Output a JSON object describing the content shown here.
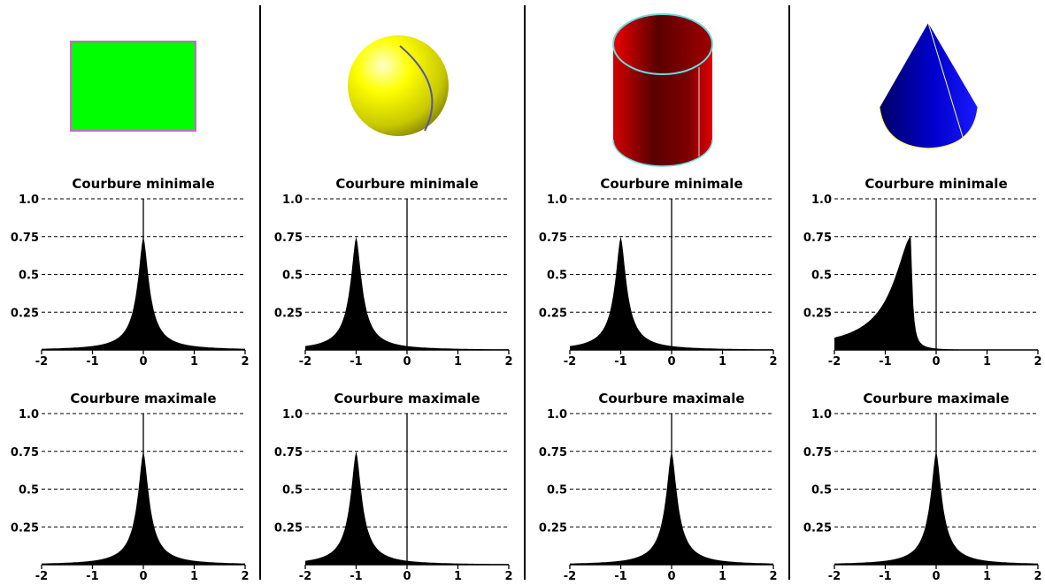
{
  "columns": [
    {
      "shape": "rectangle-icon",
      "color": "#00ff00",
      "edge": "#cc66cc"
    },
    {
      "shape": "sphere-icon",
      "color": "#ffff00",
      "edge": "#5555aa"
    },
    {
      "shape": "cylinder-icon",
      "color": "#cc0000",
      "edge": "#66dddd"
    },
    {
      "shape": "cone-icon",
      "color": "#0000dd",
      "edge": "#ffff66"
    }
  ],
  "chart_data": [
    {
      "type": "area",
      "title": "Courbure minimale",
      "peak_x": 0,
      "peak_y": 0.75,
      "width_left": 0.18,
      "width_right": 0.18,
      "xlim": [
        -2,
        2
      ],
      "ylim": [
        0,
        1.0
      ],
      "xticks": [
        "-2",
        "-1",
        "0",
        "1",
        "2"
      ],
      "yticks": [
        "1.0",
        "0.75",
        "0.5",
        "0.25"
      ],
      "grid": "horizontal dashed"
    },
    {
      "type": "area",
      "title": "Courbure maximale",
      "peak_x": 0,
      "peak_y": 0.75,
      "width_left": 0.18,
      "width_right": 0.18,
      "xlim": [
        -2,
        2
      ],
      "ylim": [
        0,
        1.0
      ],
      "xticks": [
        "-2",
        "-1",
        "0",
        "1",
        "2"
      ],
      "yticks": [
        "1.0",
        "0.75",
        "0.5",
        "0.25"
      ],
      "grid": "horizontal dashed"
    },
    {
      "type": "area",
      "title": "Courbure minimale",
      "peak_x": -1,
      "peak_y": 0.75,
      "width_left": 0.18,
      "width_right": 0.18,
      "xlim": [
        -2,
        2
      ],
      "ylim": [
        0,
        1.0
      ],
      "xticks": [
        "-2",
        "-1",
        "0",
        "1",
        "2"
      ],
      "yticks": [
        "1.0",
        "0.75",
        "0.5",
        "0.25"
      ],
      "grid": "horizontal dashed"
    },
    {
      "type": "area",
      "title": "Courbure maximale",
      "peak_x": -1,
      "peak_y": 0.75,
      "width_left": 0.18,
      "width_right": 0.18,
      "xlim": [
        -2,
        2
      ],
      "ylim": [
        0,
        1.0
      ],
      "xticks": [
        "-2",
        "-1",
        "0",
        "1",
        "2"
      ],
      "yticks": [
        "1.0",
        "0.75",
        "0.5",
        "0.25"
      ],
      "grid": "horizontal dashed"
    },
    {
      "type": "area",
      "title": "Courbure minimale",
      "peak_x": -1,
      "peak_y": 0.75,
      "width_left": 0.18,
      "width_right": 0.18,
      "xlim": [
        -2,
        2
      ],
      "ylim": [
        0,
        1.0
      ],
      "xticks": [
        "-2",
        "-1",
        "0",
        "1",
        "2"
      ],
      "yticks": [
        "1.0",
        "0.75",
        "0.5",
        "0.25"
      ],
      "grid": "horizontal dashed"
    },
    {
      "type": "area",
      "title": "Courbure maximale",
      "peak_x": 0,
      "peak_y": 0.75,
      "width_left": 0.18,
      "width_right": 0.18,
      "xlim": [
        -2,
        2
      ],
      "ylim": [
        0,
        1.0
      ],
      "xticks": [
        "-2",
        "-1",
        "0",
        "1",
        "2"
      ],
      "yticks": [
        "1.0",
        "0.75",
        "0.5",
        "0.25"
      ],
      "grid": "horizontal dashed"
    },
    {
      "type": "area",
      "title": "Courbure minimale",
      "peak_x": -0.5,
      "peak_y": 0.75,
      "width_left": 0.55,
      "width_right": 0.05,
      "xlim": [
        -2,
        2
      ],
      "ylim": [
        0,
        1.0
      ],
      "xticks": [
        "-2",
        "-1",
        "0",
        "1",
        "2"
      ],
      "yticks": [
        "1.0",
        "0.75",
        "0.5",
        "0.25"
      ],
      "grid": "horizontal dashed"
    },
    {
      "type": "area",
      "title": "Courbure maximale",
      "peak_x": 0,
      "peak_y": 0.75,
      "width_left": 0.18,
      "width_right": 0.18,
      "xlim": [
        -2,
        2
      ],
      "ylim": [
        0,
        1.0
      ],
      "xticks": [
        "-2",
        "-1",
        "0",
        "1",
        "2"
      ],
      "yticks": [
        "1.0",
        "0.75",
        "0.5",
        "0.25"
      ],
      "grid": "horizontal dashed"
    }
  ]
}
